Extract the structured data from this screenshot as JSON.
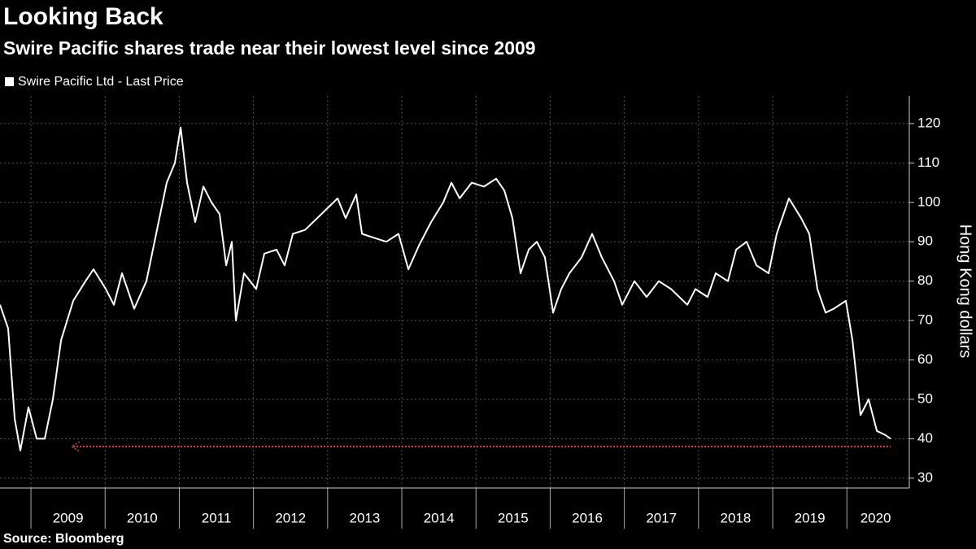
{
  "chart_data": {
    "type": "line",
    "title": "Looking Back",
    "subtitle": "Swire Pacific shares trade near their lowest level since 2009",
    "y_axis_label": "Hong Kong dollars",
    "source": "Source: Bloomberg",
    "series": [
      {
        "name": "Swire Pacific Ltd - Last Price",
        "color": "#ffffff",
        "x": [
          2008.583,
          2008.693,
          2008.781,
          2008.857,
          2008.967,
          2009.077,
          2009.186,
          2009.296,
          2009.406,
          2009.57,
          2009.735,
          2009.844,
          2010.009,
          2010.118,
          2010.228,
          2010.392,
          2010.557,
          2010.721,
          2010.831,
          2010.941,
          2011.018,
          2011.105,
          2011.215,
          2011.325,
          2011.434,
          2011.544,
          2011.632,
          2011.708,
          2011.763,
          2011.873,
          2012.037,
          2012.147,
          2012.311,
          2012.421,
          2012.531,
          2012.695,
          2012.86,
          2013.024,
          2013.134,
          2013.243,
          2013.386,
          2013.463,
          2013.627,
          2013.792,
          2013.956,
          2014.088,
          2014.23,
          2014.395,
          2014.559,
          2014.669,
          2014.779,
          2014.943,
          2015.107,
          2015.272,
          2015.382,
          2015.491,
          2015.601,
          2015.711,
          2015.82,
          2015.93,
          2016.039,
          2016.149,
          2016.259,
          2016.423,
          2016.566,
          2016.697,
          2016.862,
          2016.971,
          2017.136,
          2017.3,
          2017.465,
          2017.629,
          2017.849,
          2017.958,
          2018.123,
          2018.232,
          2018.397,
          2018.507,
          2018.649,
          2018.781,
          2018.945,
          2019.055,
          2019.219,
          2019.384,
          2019.493,
          2019.603,
          2019.713,
          2019.822,
          2019.987,
          2020.075,
          2020.184,
          2020.294,
          2020.404,
          2020.513,
          2020.59
        ],
        "values": [
          74,
          68,
          45,
          37,
          48,
          40,
          40,
          50,
          65,
          75,
          80,
          83,
          78,
          74,
          82,
          73,
          80,
          95,
          105,
          110,
          119,
          105,
          95,
          104,
          100,
          97,
          84,
          90,
          70,
          82,
          78,
          87,
          88,
          84,
          92,
          93,
          96,
          99,
          101,
          96,
          102,
          92,
          91,
          90,
          92,
          83,
          89,
          95,
          100,
          105,
          101,
          105,
          104,
          106,
          103,
          96,
          82,
          88,
          90,
          86,
          72,
          78,
          82,
          86,
          92,
          86,
          80,
          74,
          80,
          76,
          80,
          78,
          74,
          78,
          76,
          82,
          80,
          88,
          90,
          84,
          82,
          92,
          101,
          96,
          92,
          78,
          72,
          73,
          75,
          65,
          46,
          50,
          42,
          41,
          40
        ]
      }
    ],
    "reference_line": {
      "value": 38,
      "color": "#e23b3b"
    },
    "xlim": [
      2008.583,
      2020.776
    ],
    "xticks": [
      2009,
      2010,
      2011,
      2012,
      2013,
      2014,
      2015,
      2016,
      2017,
      2018,
      2019,
      2020
    ],
    "ylim": [
      27.5,
      127
    ],
    "yticks": [
      30,
      40,
      50,
      60,
      70,
      80,
      90,
      100,
      110,
      120
    ],
    "grid": true
  }
}
